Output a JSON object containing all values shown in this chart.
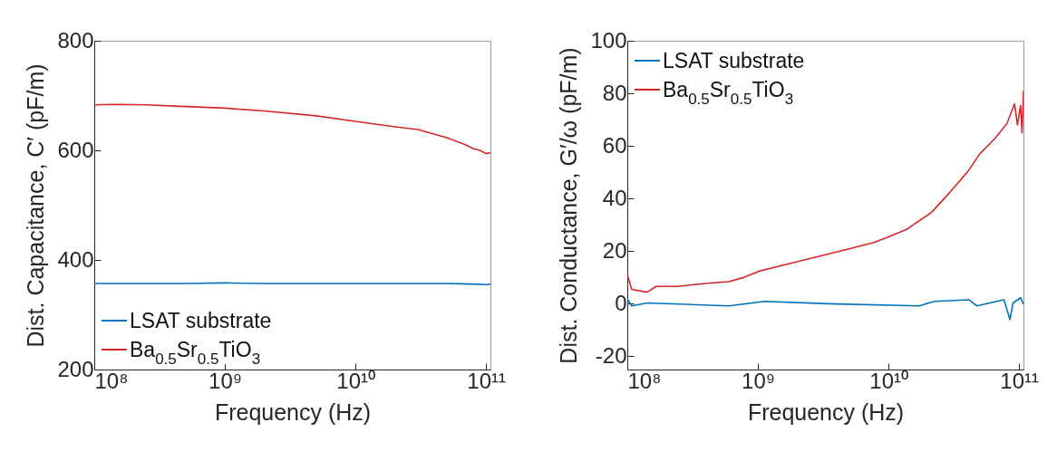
{
  "chart_data": [
    {
      "type": "line",
      "xlabel": "Frequency (Hz)",
      "ylabel": "Dist. Capacitance, C′ (pF/m)",
      "log": "x",
      "legend": "bottom left",
      "xlim": [
        100000000.0,
        108000000000.0
      ],
      "xticks": [
        {
          "value": 100000000.0,
          "label": "10⁸"
        },
        {
          "value": 1000000000.0,
          "label": "10⁹"
        },
        {
          "value": 10000000000.0,
          "label": "10¹⁰"
        },
        {
          "value": 100000000000.0,
          "label": "10¹¹"
        }
      ],
      "ylim": [
        200,
        800
      ],
      "yticks": [
        200,
        400,
        600,
        800
      ],
      "series": [
        {
          "name": "LSAT substrate",
          "color": "#0072bd",
          "x": [
            100000000.0,
            200000000.0,
            500000000.0,
            1000000000.0,
            2000000000.0,
            5000000000.0,
            10000000000.0,
            20000000000.0,
            50000000000.0,
            80000000000.0,
            100000000000.0,
            108000000000.0
          ],
          "values": [
            357,
            357,
            357,
            358,
            357,
            357,
            357,
            357,
            357,
            356,
            355,
            356
          ]
        },
        {
          "name": "Ba$_{0.5}$Sr$_{0.5}$TiO$_{3}$",
          "color": "#d62728",
          "x": [
            100000000.0,
            150000000.0,
            250000000.0,
            500000000.0,
            1000000000.0,
            2000000000.0,
            5000000000.0,
            10000000000.0,
            20000000000.0,
            30000000000.0,
            50000000000.0,
            70000000000.0,
            80000000000.0,
            90000000000.0,
            100000000000.0,
            108000000000.0
          ],
          "values": [
            683,
            684,
            683,
            680,
            677,
            672,
            663,
            653,
            643,
            638,
            623,
            610,
            603,
            600,
            594,
            596
          ]
        }
      ]
    },
    {
      "type": "line",
      "xlabel": "Frequency (Hz)",
      "ylabel": "Dist. Conductance, G′/ω (pF/m)",
      "log": "x",
      "legend": "top left",
      "xlim": [
        100000000.0,
        108000000000.0
      ],
      "xticks": [
        {
          "value": 100000000.0,
          "label": "10⁸"
        },
        {
          "value": 1000000000.0,
          "label": "10⁹"
        },
        {
          "value": 10000000000.0,
          "label": "10¹⁰"
        },
        {
          "value": 100000000000.0,
          "label": "10¹¹"
        }
      ],
      "ylim": [
        -25,
        100
      ],
      "yticks": [
        -20,
        0,
        20,
        40,
        60,
        80,
        100
      ],
      "series": [
        {
          "name": "LSAT substrate",
          "color": "#0072bd",
          "x": [
            100000000.0,
            108000000.0,
            142000000.0,
            597000000.0,
            1130000000.0,
            3470000000.0,
            17200000000.0,
            22400000000.0,
            41500000000.0,
            47400000000.0,
            76500000000.0,
            85100000000.0,
            89800000000.0,
            102600000000.0,
            108000000000.0
          ],
          "values": [
            2,
            -0.8,
            0.3,
            -0.8,
            0.9,
            0,
            -0.8,
            0.9,
            1.5,
            -0.8,
            1.5,
            -6,
            0.3,
            2.3,
            -0.2
          ]
        },
        {
          "name": "Ba$_{0.5}$Sr$_{0.5}$TiO$_{3}$",
          "color": "#d62728",
          "x": [
            100000000.0,
            108000000.0,
            142000000.0,
            166000000.0,
            241000000.0,
            411000000.0,
            597000000.0,
            780000000.0,
            1020000000.0,
            1560000000.0,
            2660000000.0,
            4530000000.0,
            7730000000.0,
            10100000000.0,
            13900000000.0,
            21300000000.0,
            29300000000.0,
            40400000000.0,
            50000000000.0,
            65200000000.0,
            80700000000.0,
            92200000000.0,
            97200000000.0,
            102600000000.0,
            105400000000.0,
            108000000000.0
          ],
          "values": [
            11.2,
            5.5,
            4.4,
            6.6,
            6.6,
            7.8,
            8.4,
            10,
            12.4,
            14.7,
            17.5,
            20.4,
            23.3,
            25.5,
            28.4,
            34.7,
            42.2,
            50.2,
            57,
            62.8,
            68.5,
            76,
            68,
            75.4,
            65,
            81
          ]
        }
      ]
    }
  ]
}
